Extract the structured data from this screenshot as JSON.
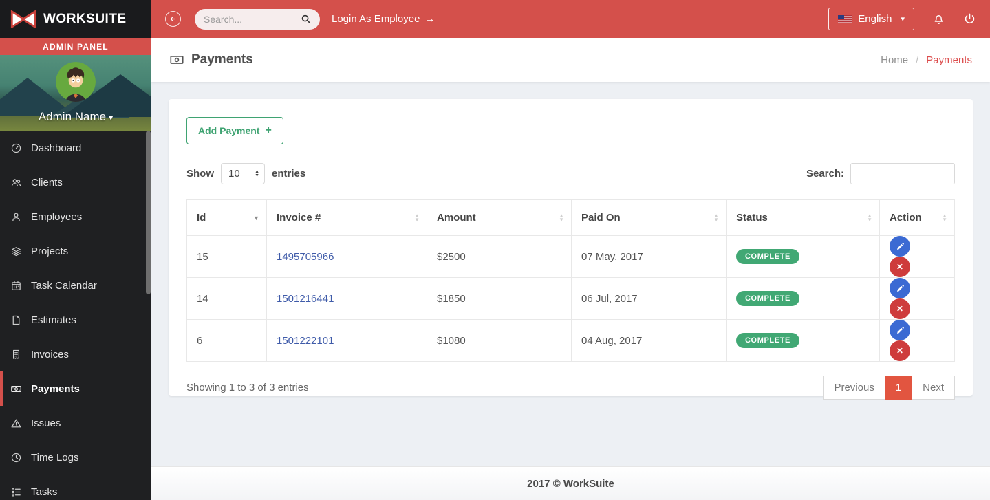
{
  "colors": {
    "accent_red": "#d4504b",
    "sidebar_bg": "#1f2022",
    "page_bg": "#edf0f4",
    "green": "#3fa372",
    "badge_green": "#41a874",
    "edit_blue": "#3b6ad3",
    "delete_red": "#ce3c3c",
    "link_blue": "#3f5ba9",
    "pagination_active": "#e25540"
  },
  "sidebar": {
    "logo_text": "WORKSUITE",
    "admin_panel_label": "ADMIN PANEL",
    "profile": {
      "name": "Admin Name",
      "caret": "▾"
    },
    "items": [
      {
        "label": "Dashboard",
        "icon": "gauge-icon",
        "active": false
      },
      {
        "label": "Clients",
        "icon": "users-icon",
        "active": false
      },
      {
        "label": "Employees",
        "icon": "user-icon",
        "active": false
      },
      {
        "label": "Projects",
        "icon": "layers-icon",
        "active": false
      },
      {
        "label": "Task Calendar",
        "icon": "calendar-icon",
        "active": false
      },
      {
        "label": "Estimates",
        "icon": "file-icon",
        "active": false
      },
      {
        "label": "Invoices",
        "icon": "receipt-icon",
        "active": false
      },
      {
        "label": "Payments",
        "icon": "banknote-icon",
        "active": true
      },
      {
        "label": "Issues",
        "icon": "warning-icon",
        "active": false
      },
      {
        "label": "Time Logs",
        "icon": "clock-icon",
        "active": false
      },
      {
        "label": "Tasks",
        "icon": "tasklist-icon",
        "active": false
      }
    ]
  },
  "topbar": {
    "collapse_icon": "arrow-left-circle-icon",
    "search_placeholder": "Search...",
    "search_icon": "search-icon",
    "login_label": "Login As Employee",
    "login_arrow": "→",
    "language": {
      "label": "English",
      "flag_icon": "us-flag-icon",
      "caret": "▾"
    },
    "bell_icon": "bell-icon",
    "power_icon": "power-icon"
  },
  "page_header": {
    "icon": "banknote-icon",
    "title": "Payments",
    "breadcrumb": {
      "home": "Home",
      "separator": "/",
      "current": "Payments"
    }
  },
  "content": {
    "add_payment_label": "Add Payment",
    "add_payment_icon": "+",
    "show_label": "Show",
    "entries_label": "entries",
    "page_length_value": "10",
    "search_label": "Search:",
    "search_value": "",
    "table": {
      "columns": [
        {
          "label": "Id",
          "sort": "desc"
        },
        {
          "label": "Invoice #",
          "sort": "both"
        },
        {
          "label": "Amount",
          "sort": "both"
        },
        {
          "label": "Paid On",
          "sort": "both"
        },
        {
          "label": "Status",
          "sort": "both"
        },
        {
          "label": "Action",
          "sort": "both"
        }
      ],
      "rows": [
        {
          "id": "15",
          "invoice_number": "1495705966",
          "amount": "$2500",
          "paid_on": "07 May, 2017",
          "status": "COMPLETE"
        },
        {
          "id": "14",
          "invoice_number": "1501216441",
          "amount": "$1850",
          "paid_on": "06 Jul, 2017",
          "status": "COMPLETE"
        },
        {
          "id": "6",
          "invoice_number": "1501222101",
          "amount": "$1080",
          "paid_on": "04 Aug, 2017",
          "status": "COMPLETE"
        }
      ],
      "row_actions": [
        {
          "icon": "pencil-icon",
          "name": "edit"
        },
        {
          "icon": "x-icon",
          "name": "delete"
        }
      ]
    },
    "summary": "Showing 1 to 3 of 3 entries",
    "pagination": {
      "previous": "Previous",
      "current": "1",
      "next": "Next"
    }
  },
  "footer": {
    "copyright": "2017 © WorkSuite"
  }
}
